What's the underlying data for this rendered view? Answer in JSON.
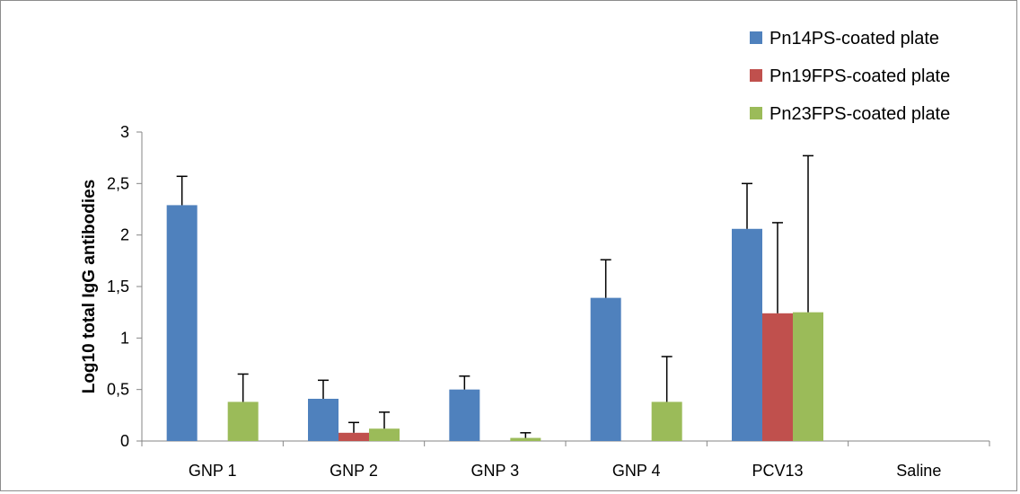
{
  "chart_data": {
    "type": "bar",
    "title": "",
    "xlabel": "",
    "ylabel": "Log10 total IgG antibodies",
    "categories": [
      "GNP 1",
      "GNP 2",
      "GNP 3",
      "GNP 4",
      "PCV13",
      "Saline"
    ],
    "ylim": [
      0,
      3
    ],
    "yticks": [
      0,
      0.5,
      1,
      1.5,
      2,
      2.5,
      3
    ],
    "ytick_labels": [
      "0",
      "0,5",
      "1",
      "1,5",
      "2",
      "2,5",
      "3"
    ],
    "grid": false,
    "legend_position": "top-right",
    "series": [
      {
        "name": "Pn14PS-coated plate",
        "color": "#4f81bd",
        "values": [
          2.29,
          0.41,
          0.5,
          1.39,
          2.06,
          0
        ],
        "errors": [
          0.28,
          0.18,
          0.13,
          0.37,
          0.44,
          0
        ]
      },
      {
        "name": "Pn19FPS-coated plate",
        "color": "#c0504d",
        "values": [
          0,
          0.08,
          0,
          0,
          1.24,
          0
        ],
        "errors": [
          0,
          0.1,
          0,
          0,
          0.88,
          0
        ]
      },
      {
        "name": "Pn23FPS-coated plate",
        "color": "#9bbb59",
        "values": [
          0.38,
          0.12,
          0.03,
          0.38,
          1.25,
          0
        ],
        "errors": [
          0.27,
          0.16,
          0.05,
          0.44,
          1.52,
          0
        ]
      }
    ]
  }
}
